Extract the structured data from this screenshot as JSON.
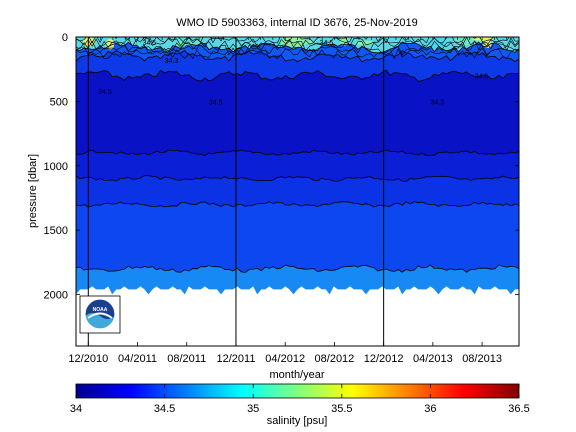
{
  "chart_data": {
    "type": "heatmap",
    "title": "WMO ID 5903363, internal ID 3676, 25-Nov-2019",
    "xlabel": "month/year",
    "ylabel": "pressure [dbar]",
    "x_tick_labels": [
      "12/2010",
      "04/2011",
      "08/2011",
      "12/2011",
      "04/2012",
      "08/2012",
      "12/2012",
      "04/2013",
      "08/2013"
    ],
    "x_range": [
      "11/2010",
      "11/2013"
    ],
    "y_ticks": [
      0,
      500,
      1000,
      1500,
      2000
    ],
    "y_range": [
      0,
      2400
    ],
    "y_reversed": true,
    "grid": false,
    "vertical_markers": [
      "12/2010",
      "12/2011",
      "12/2012"
    ],
    "max_pressure_dbar": 1960,
    "layers": [
      {
        "top": 0,
        "bottom": 80,
        "salinity": 34.85,
        "color": "#5ad8e6"
      },
      {
        "top": 80,
        "bottom": 150,
        "salinity": 34.45,
        "color": "#0f58f5"
      },
      {
        "top": 150,
        "bottom": 300,
        "salinity": 34.3,
        "color": "#0d3ae6"
      },
      {
        "top": 300,
        "bottom": 900,
        "salinity": 34.1,
        "color": "#0a12c6"
      },
      {
        "top": 900,
        "bottom": 1100,
        "salinity": 34.2,
        "color": "#0a1fd6"
      },
      {
        "top": 1100,
        "bottom": 1300,
        "salinity": 34.3,
        "color": "#0c32e6"
      },
      {
        "top": 1300,
        "bottom": 1800,
        "salinity": 34.4,
        "color": "#0d47f0"
      },
      {
        "top": 1800,
        "bottom": 1960,
        "salinity": 34.6,
        "color": "#1689f5"
      }
    ],
    "contour_pressures": [
      80,
      150,
      300,
      900,
      1100,
      1300,
      1800
    ],
    "contour_labels": [
      "34.5",
      "34.5",
      "34.3",
      "34.3",
      "34.5",
      "34.6",
      "34.5"
    ],
    "colorbar": {
      "label": "salinity [psu]",
      "range": [
        34,
        36.5
      ],
      "ticks": [
        "34",
        "34.5",
        "35",
        "35.5",
        "36",
        "36.5"
      ],
      "colormap": [
        "#00008f",
        "#0000ff",
        "#0080ff",
        "#00ffff",
        "#80ff80",
        "#ffff00",
        "#ff8000",
        "#ff0000",
        "#800000"
      ]
    },
    "logo": "noaa"
  }
}
